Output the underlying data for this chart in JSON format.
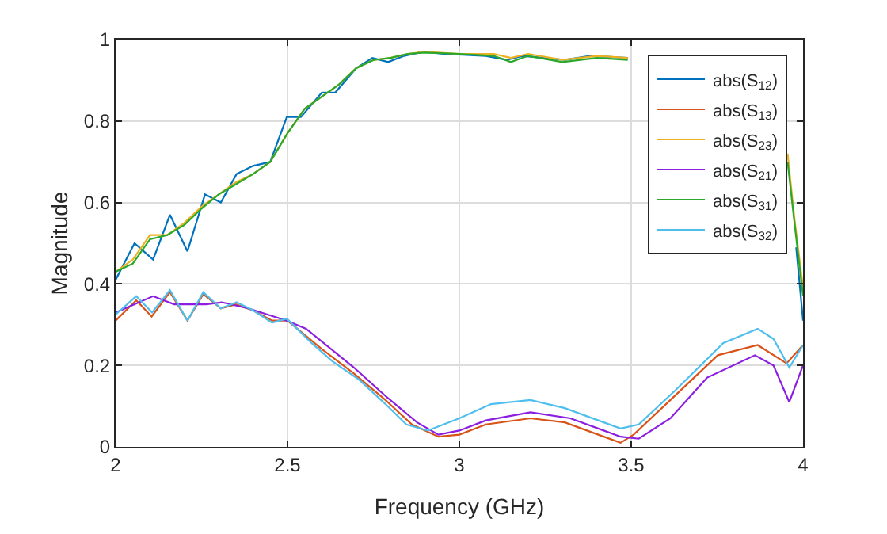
{
  "chart_data": {
    "type": "line",
    "xlabel": "Frequency (GHz)",
    "ylabel": "Magnitude",
    "xlim": [
      2,
      4
    ],
    "ylim": [
      0,
      1
    ],
    "xticks": [
      2,
      2.5,
      3,
      3.5,
      4
    ],
    "yticks": [
      0,
      0.2,
      0.4,
      0.6,
      0.8,
      1
    ],
    "grid": true,
    "legend": "top right",
    "line_style": "solid",
    "marker": "none",
    "series": [
      {
        "name": "abs(S$_{12}$)",
        "color": "#0072bd",
        "x": [
          2.0,
          2.055,
          2.109,
          2.158,
          2.209,
          2.26,
          2.306,
          2.352,
          2.4,
          2.45,
          2.498,
          2.539,
          2.6,
          2.639,
          2.7,
          2.747,
          2.793,
          2.839,
          2.893,
          2.954,
          3.077,
          3.138,
          3.184,
          3.307,
          3.38,
          3.49,
          3.52,
          3.954,
          3.98,
          4.0
        ],
        "values": [
          0.41,
          0.5,
          0.46,
          0.57,
          0.48,
          0.62,
          0.6,
          0.67,
          0.69,
          0.7,
          0.81,
          0.81,
          0.87,
          0.87,
          0.93,
          0.955,
          0.945,
          0.96,
          0.97,
          0.965,
          0.96,
          0.95,
          0.96,
          0.95,
          0.96,
          0.955,
          null,
          null,
          0.49,
          0.31
        ]
      },
      {
        "name": "abs(S$_{13}$)",
        "color": "#d95319",
        "x": [
          2.0,
          2.06,
          2.105,
          2.158,
          2.209,
          2.255,
          2.306,
          2.35,
          2.4,
          2.455,
          2.5,
          2.6,
          2.693,
          2.785,
          2.862,
          2.939,
          3.0,
          3.077,
          3.207,
          3.307,
          3.469,
          3.507,
          3.614,
          3.752,
          3.868,
          3.952,
          4.0
        ],
        "values": [
          0.31,
          0.36,
          0.32,
          0.38,
          0.31,
          0.375,
          0.34,
          0.35,
          0.335,
          0.31,
          0.31,
          0.24,
          0.18,
          0.115,
          0.055,
          0.025,
          0.03,
          0.055,
          0.07,
          0.06,
          0.01,
          0.03,
          0.115,
          0.225,
          0.25,
          0.205,
          0.25
        ]
      },
      {
        "name": "abs(S$_{23}$)",
        "color": "#edb120",
        "x": [
          2.0,
          2.05,
          2.1,
          2.15,
          2.2,
          2.25,
          2.3,
          2.35,
          2.4,
          2.45,
          2.5,
          2.55,
          2.6,
          2.65,
          2.7,
          2.75,
          2.8,
          2.85,
          2.9,
          3.0,
          3.1,
          3.15,
          3.2,
          3.3,
          3.4,
          3.49,
          3.52,
          3.955,
          3.975,
          4.0
        ],
        "values": [
          0.43,
          0.46,
          0.52,
          0.52,
          0.55,
          0.59,
          0.62,
          0.65,
          0.67,
          0.7,
          0.77,
          0.83,
          0.86,
          0.89,
          0.93,
          0.95,
          0.955,
          0.965,
          0.97,
          0.965,
          0.965,
          0.955,
          0.965,
          0.95,
          0.96,
          0.955,
          null,
          0.72,
          0.56,
          0.39
        ]
      },
      {
        "name": "abs(S$_{21}$)",
        "color": "#8b1ee0",
        "x": [
          2.0,
          2.109,
          2.17,
          2.263,
          2.309,
          2.386,
          2.498,
          2.554,
          2.693,
          2.785,
          2.877,
          2.939,
          3.0,
          3.077,
          3.207,
          3.323,
          3.469,
          3.522,
          3.614,
          3.721,
          3.86,
          3.914,
          3.96,
          4.0
        ],
        "values": [
          0.33,
          0.37,
          0.35,
          0.35,
          0.355,
          0.34,
          0.31,
          0.29,
          0.195,
          0.125,
          0.06,
          0.03,
          0.04,
          0.065,
          0.085,
          0.07,
          0.025,
          0.02,
          0.07,
          0.17,
          0.225,
          0.2,
          0.11,
          0.2
        ]
      },
      {
        "name": "abs(S$_{31}$)",
        "color": "#2aa82a",
        "x": [
          2.0,
          2.05,
          2.1,
          2.15,
          2.2,
          2.25,
          2.3,
          2.35,
          2.4,
          2.45,
          2.5,
          2.55,
          2.6,
          2.65,
          2.7,
          2.75,
          2.8,
          2.85,
          2.9,
          3.0,
          3.1,
          3.15,
          3.2,
          3.3,
          3.4,
          3.49,
          3.52,
          3.955,
          3.975,
          4.0
        ],
        "values": [
          0.43,
          0.45,
          0.51,
          0.52,
          0.545,
          0.585,
          0.62,
          0.645,
          0.67,
          0.7,
          0.77,
          0.83,
          0.86,
          0.89,
          0.93,
          0.95,
          0.955,
          0.965,
          0.968,
          0.965,
          0.96,
          0.945,
          0.96,
          0.945,
          0.955,
          0.95,
          null,
          0.7,
          0.55,
          0.37
        ]
      },
      {
        "name": "abs(S$_{32}$)",
        "color": "#4dbeee",
        "x": [
          2.0,
          2.06,
          2.106,
          2.158,
          2.209,
          2.255,
          2.306,
          2.352,
          2.4,
          2.455,
          2.498,
          2.57,
          2.631,
          2.708,
          2.785,
          2.846,
          2.908,
          2.954,
          3.0,
          3.092,
          3.207,
          3.307,
          3.469,
          3.522,
          3.63,
          3.768,
          3.868,
          3.914,
          3.96,
          4.0
        ],
        "values": [
          0.325,
          0.37,
          0.33,
          0.385,
          0.31,
          0.38,
          0.34,
          0.355,
          0.335,
          0.305,
          0.315,
          0.255,
          0.21,
          0.165,
          0.105,
          0.055,
          0.04,
          0.055,
          0.07,
          0.105,
          0.115,
          0.095,
          0.045,
          0.055,
          0.14,
          0.255,
          0.29,
          0.265,
          0.195,
          0.25
        ]
      }
    ]
  }
}
